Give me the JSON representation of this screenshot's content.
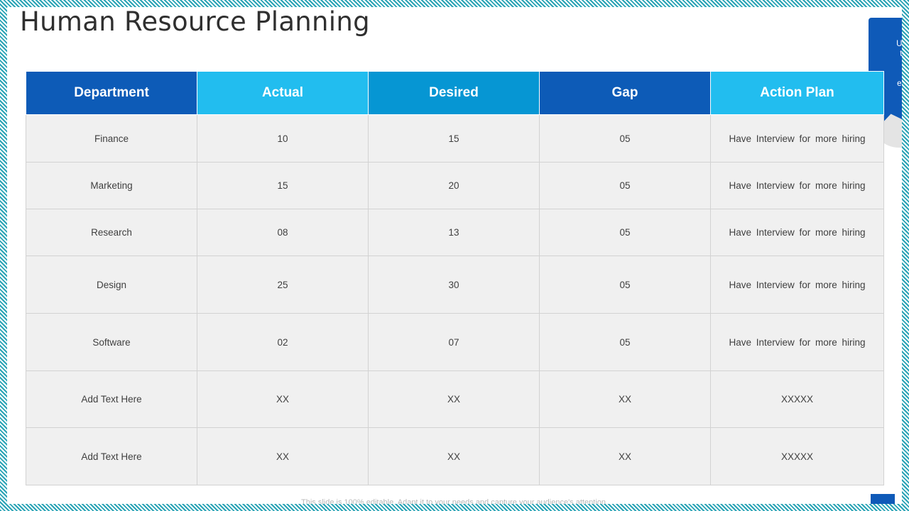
{
  "slide": {
    "title": "Human Resource Planning",
    "callout_lines": [
      "Use the",
      "this sl",
      "hur",
      "requ",
      "eadcou"
    ],
    "footer_note": "This slide is 100% editable. Adapt it to your needs and capture your audience's attention."
  },
  "table": {
    "columns": [
      {
        "label": "Department",
        "color": "#0d5bb7"
      },
      {
        "label": "Actual",
        "color": "#22bdef"
      },
      {
        "label": "Desired",
        "color": "#0696d3"
      },
      {
        "label": "Gap",
        "color": "#0d5bb7"
      },
      {
        "label": "Action Plan",
        "color": "#22bdef"
      }
    ],
    "rows": [
      {
        "department": "Finance",
        "actual": "10",
        "desired": "15",
        "gap": "05",
        "action": "Have Interview for more hiring"
      },
      {
        "department": "Marketing",
        "actual": "15",
        "desired": "20",
        "gap": "05",
        "action": "Have Interview for more hiring"
      },
      {
        "department": "Research",
        "actual": "08",
        "desired": "13",
        "gap": "05",
        "action": "Have Interview for more hiring"
      },
      {
        "department": "Design",
        "actual": "25",
        "desired": "30",
        "gap": "05",
        "action": "Have Interview for more hiring"
      },
      {
        "department": "Software",
        "actual": "02",
        "desired": "07",
        "gap": "05",
        "action": "Have Interview for more hiring"
      },
      {
        "department": "Add Text Here",
        "actual": "XX",
        "desired": "XX",
        "gap": "XX",
        "action": "XXXXX"
      },
      {
        "department": "Add Text Here",
        "actual": "XX",
        "desired": "XX",
        "gap": "XX",
        "action": "XXXXX"
      }
    ]
  }
}
